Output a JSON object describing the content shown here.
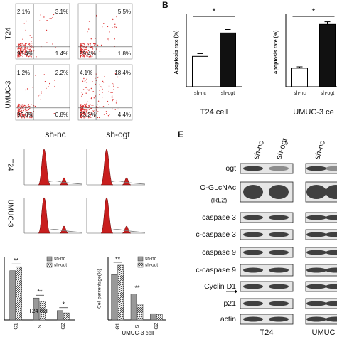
{
  "flow": {
    "row_labels": [
      "T24",
      "UMUC-3"
    ],
    "plots": [
      {
        "ul": "2.1%",
        "ur": "3.1%",
        "ll": "93.4%",
        "lr": "1.4%"
      },
      {
        "ur": "5.5%",
        "ll": "89.4%",
        "lr": "1.8%"
      },
      {
        "ul": "1.2%",
        "ur": "2.2%",
        "ll": "95.0%",
        "lr": "0.8%"
      },
      {
        "ul": "4.1%",
        "ur": "18.4%",
        "ll": "73.2%",
        "lr": "4.4%"
      }
    ]
  },
  "apoptosis": {
    "label": "B",
    "charts": [
      {
        "ylabel": "Apoptosis rate (%)",
        "categories": [
          "sh-nc",
          "sh-ogt"
        ],
        "values": [
          4.4,
          7.8
        ],
        "errors": [
          0.4,
          0.5
        ],
        "ylim": [
          0,
          10
        ],
        "significance": "*",
        "xlabel": "T24 cell"
      },
      {
        "ylabel": "Apoptosis rate (%)",
        "categories": [
          "sh-nc",
          "sh-ogt"
        ],
        "values": [
          7,
          23.5
        ],
        "errors": [
          0.5,
          1.0
        ],
        "ylim": [
          0,
          26
        ],
        "significance": "*",
        "xlabel": "UMUC-3 ce"
      }
    ]
  },
  "cell_cycle": {
    "columns": [
      "sh-nc",
      "sh-ogt"
    ],
    "rows": [
      "T24",
      "UMUC-3"
    ]
  },
  "cell_percentage": {
    "charts": [
      {
        "xlabel": "T24 cell",
        "categories": [
          "G1",
          "S",
          "G2"
        ],
        "ylim": [
          0,
          80
        ],
        "series": [
          {
            "name": "sh-nc",
            "values": [
              63,
              28,
              12
            ]
          },
          {
            "name": "sh-ogt",
            "values": [
              68,
              24,
              9
            ]
          }
        ],
        "significance": [
          "**",
          "**",
          "*"
        ]
      },
      {
        "xlabel": "UMUC-3 cell",
        "ylabel": "Cell percentage(%)",
        "categories": [
          "G1",
          "S",
          "G2"
        ],
        "ylim": [
          0,
          80
        ],
        "series": [
          {
            "name": "sh-nc",
            "values": [
              58,
              33,
              8
            ]
          },
          {
            "name": "sh-ogt",
            "values": [
              70,
              20,
              7
            ]
          }
        ],
        "significance": [
          "**",
          "**"
        ]
      }
    ]
  },
  "blots": {
    "label": "E",
    "columns": [
      "sh-nc",
      "sh-ogt",
      "sh-nc"
    ],
    "rows": [
      "ogt",
      "O-GLcNAc",
      "caspase 3",
      "c-caspase 3",
      "caspase 9",
      "c-caspase 9",
      "Cyclin D1",
      "p21",
      "actin"
    ],
    "sublabel": "(RL2)",
    "groups": [
      "T24",
      "UMUC"
    ]
  }
}
